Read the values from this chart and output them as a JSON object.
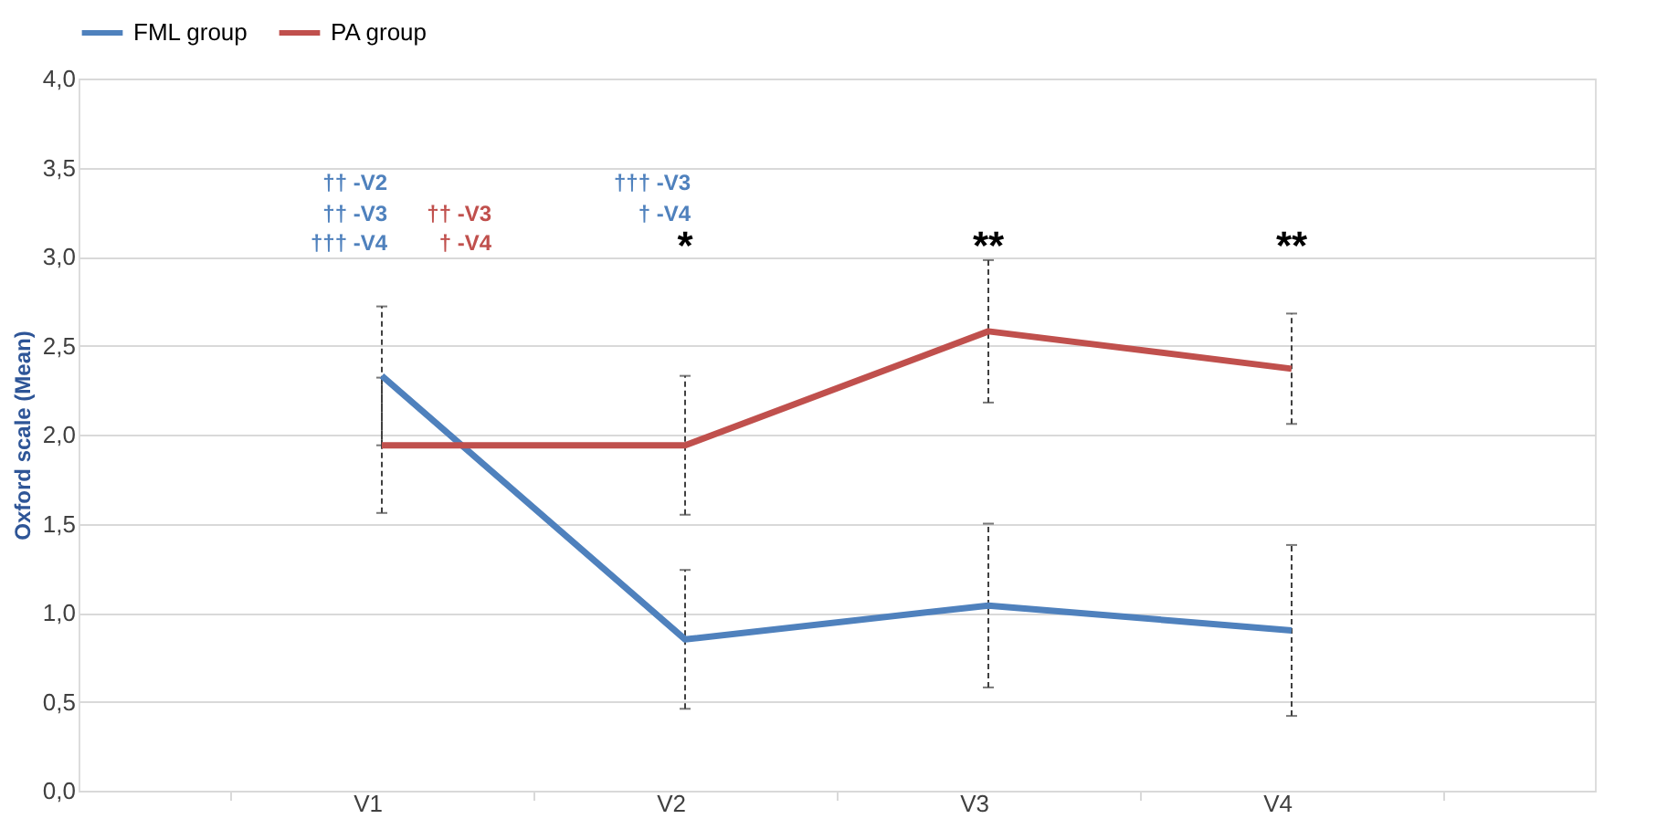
{
  "chart_data": {
    "type": "line",
    "ylabel": "Oxford scale (Mean)",
    "categories": [
      "V1",
      "V2",
      "V3",
      "V4"
    ],
    "series": [
      {
        "name": "FML group",
        "color": "#4f81bd",
        "values": [
          2.33,
          0.85,
          1.04,
          0.9
        ],
        "errors": [
          0.39,
          0.39,
          0.46,
          0.48
        ]
      },
      {
        "name": "PA group",
        "color": "#c0504d",
        "values": [
          1.94,
          1.94,
          2.58,
          2.37
        ],
        "errors": [
          0.38,
          0.39,
          0.4,
          0.31
        ]
      }
    ],
    "ylim": [
      0,
      4
    ],
    "yticks": [
      {
        "value": 0,
        "label": "0,0"
      },
      {
        "value": 0.5,
        "label": "0,5"
      },
      {
        "value": 1,
        "label": "1,0"
      },
      {
        "value": 1.5,
        "label": "1,5"
      },
      {
        "value": 2,
        "label": "2,0"
      },
      {
        "value": 2.5,
        "label": "2,5"
      },
      {
        "value": 3,
        "label": "3,0"
      },
      {
        "value": 3.5,
        "label": "3,5"
      },
      {
        "value": 4,
        "label": "4,0"
      }
    ],
    "grid": "y",
    "legend": "top",
    "marker": "none",
    "line_style": "solid",
    "annotations": [
      "†† -V2",
      "†† -V3",
      "†† -V3",
      "††† -V4",
      "† -V4",
      "††† -V3",
      "† -V4",
      "*",
      "**",
      "**"
    ]
  }
}
